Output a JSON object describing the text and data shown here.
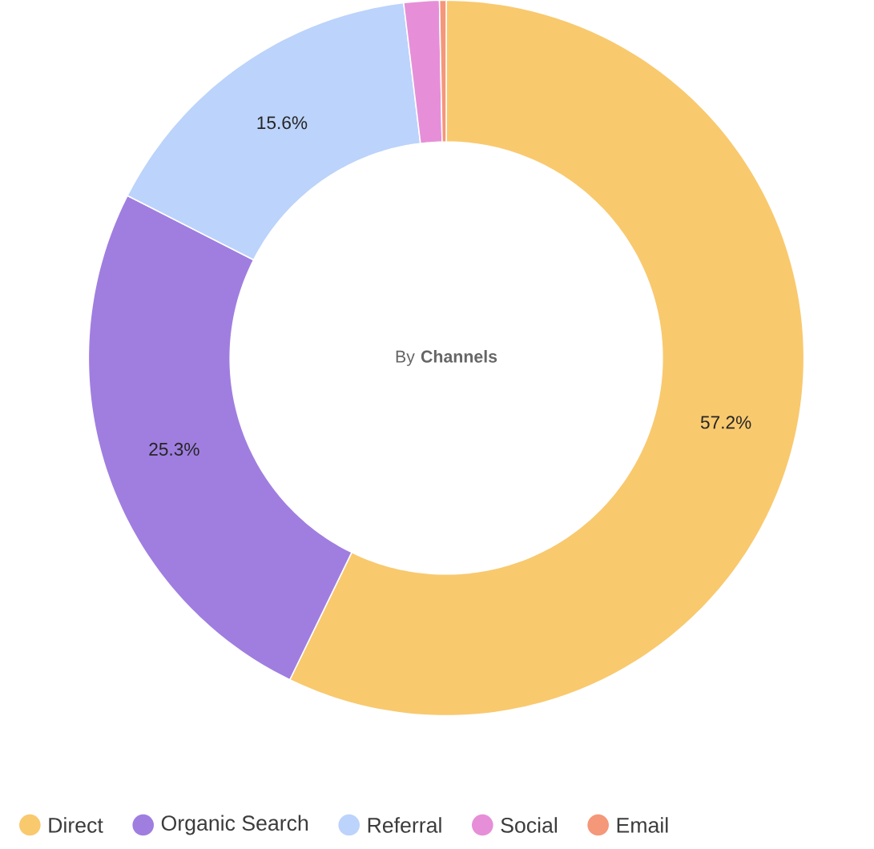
{
  "chart_data": {
    "type": "donut",
    "title": "By **Channels**",
    "categories": [
      "Direct",
      "Organic Search",
      "Referral",
      "Social",
      "Email"
    ],
    "values": [
      57.2,
      25.3,
      15.6,
      1.6,
      0.3
    ],
    "colors": [
      "#f9c96e",
      "#a07ee0",
      "#bcd3fb",
      "#e68fd8",
      "#f59779"
    ],
    "value_labels": [
      "57.2%",
      "25.3%",
      "15.6%",
      null,
      null
    ],
    "legend": "bottom"
  }
}
